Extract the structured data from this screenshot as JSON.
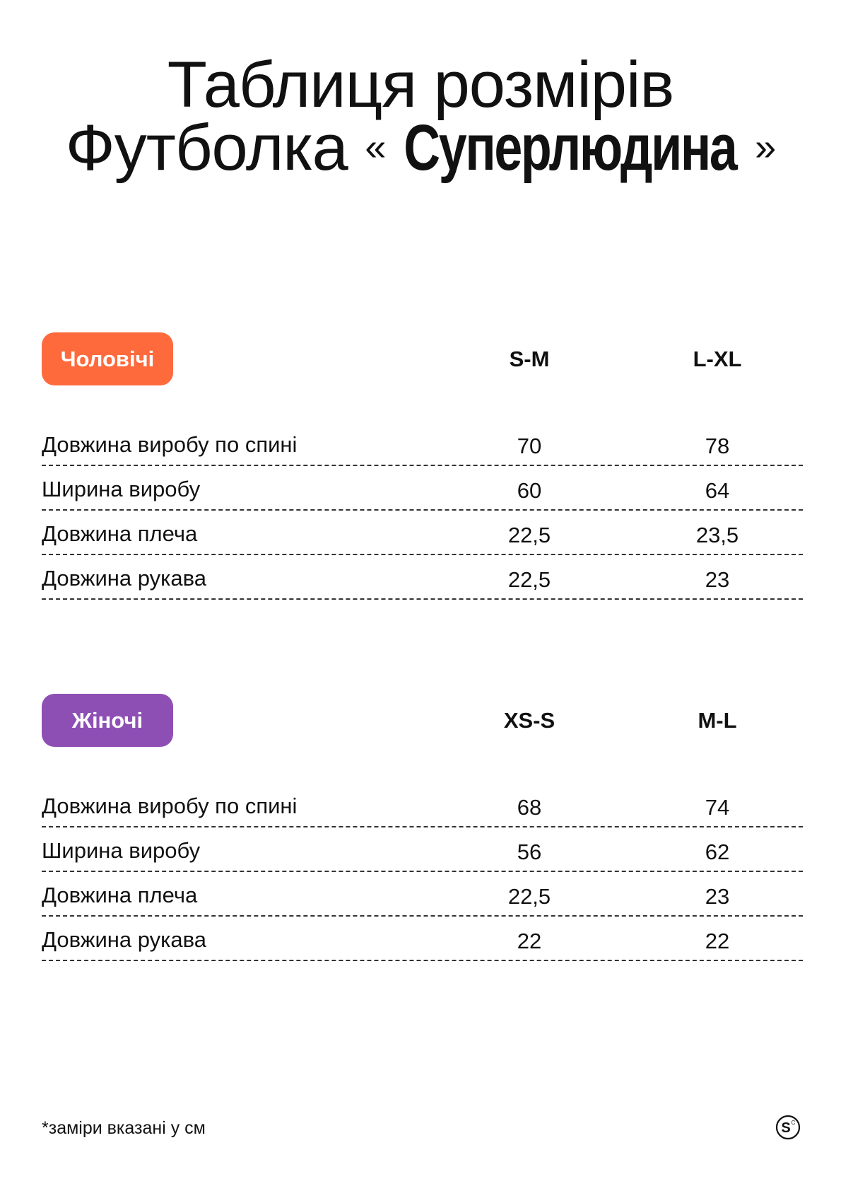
{
  "title": {
    "line1": "Таблиця розмірів",
    "line2_prefix": "Футболка",
    "quote_open": "«",
    "product_name": "Суперлюдина",
    "quote_close": "»"
  },
  "colors": {
    "men_badge": "#ff6a3d",
    "women_badge": "#8e4fb5"
  },
  "men": {
    "badge": "Чоловічі",
    "sizes": [
      "S-M",
      "L-XL"
    ],
    "rows": [
      {
        "label": "Довжина виробу по спині",
        "values": [
          "70",
          "78"
        ]
      },
      {
        "label": "Ширина виробу",
        "values": [
          "60",
          "64"
        ]
      },
      {
        "label": "Довжина плеча",
        "values": [
          "22,5",
          "23,5"
        ]
      },
      {
        "label": "Довжина рукава",
        "values": [
          "22,5",
          "23"
        ]
      }
    ]
  },
  "women": {
    "badge": "Жіночі",
    "sizes": [
      "XS-S",
      "M-L"
    ],
    "rows": [
      {
        "label": "Довжина виробу по спині",
        "values": [
          "68",
          "74"
        ]
      },
      {
        "label": "Ширина виробу",
        "values": [
          "56",
          "62"
        ]
      },
      {
        "label": "Довжина плеча",
        "values": [
          "22,5",
          "23"
        ]
      },
      {
        "label": "Довжина рукава",
        "values": [
          "22",
          "22"
        ]
      }
    ]
  },
  "footnote": "*заміри вказані у см",
  "logo": {
    "icon": "brand-logo-icon",
    "letter": "S",
    "mark": "C"
  }
}
